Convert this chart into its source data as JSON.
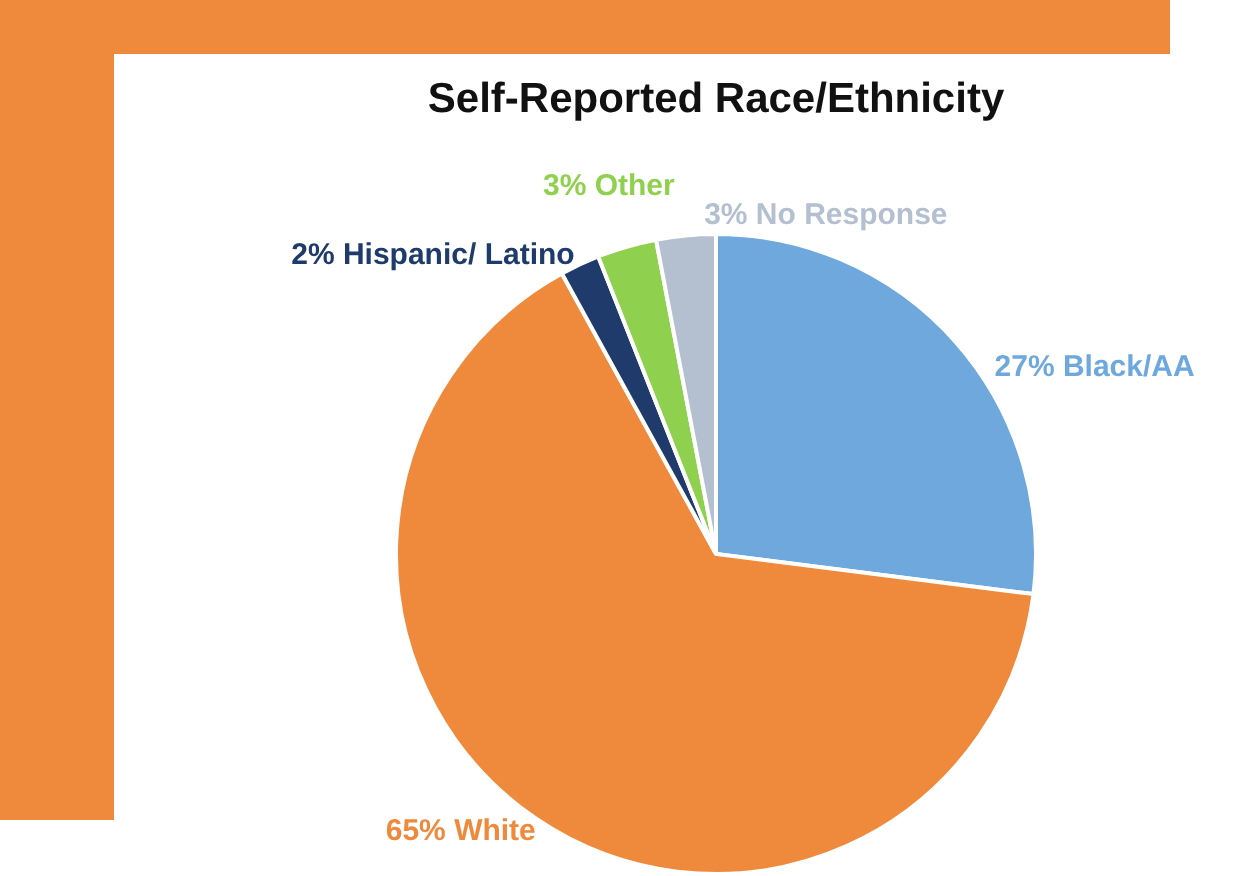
{
  "chart_data": {
    "type": "pie",
    "title": "Self-Reported Race/Ethnicity",
    "categories": [
      "Black/AA",
      "White",
      "Hispanic/ Latino",
      "Other",
      "No Response"
    ],
    "values": [
      27,
      65,
      2,
      3,
      3
    ],
    "value_labels": [
      "27%",
      "65%",
      "2%",
      "3%",
      "3%"
    ],
    "colors": [
      "#6fa8dc",
      "#ef8a3c",
      "#1f3b6b",
      "#8fd14f",
      "#b4c0d0"
    ]
  }
}
